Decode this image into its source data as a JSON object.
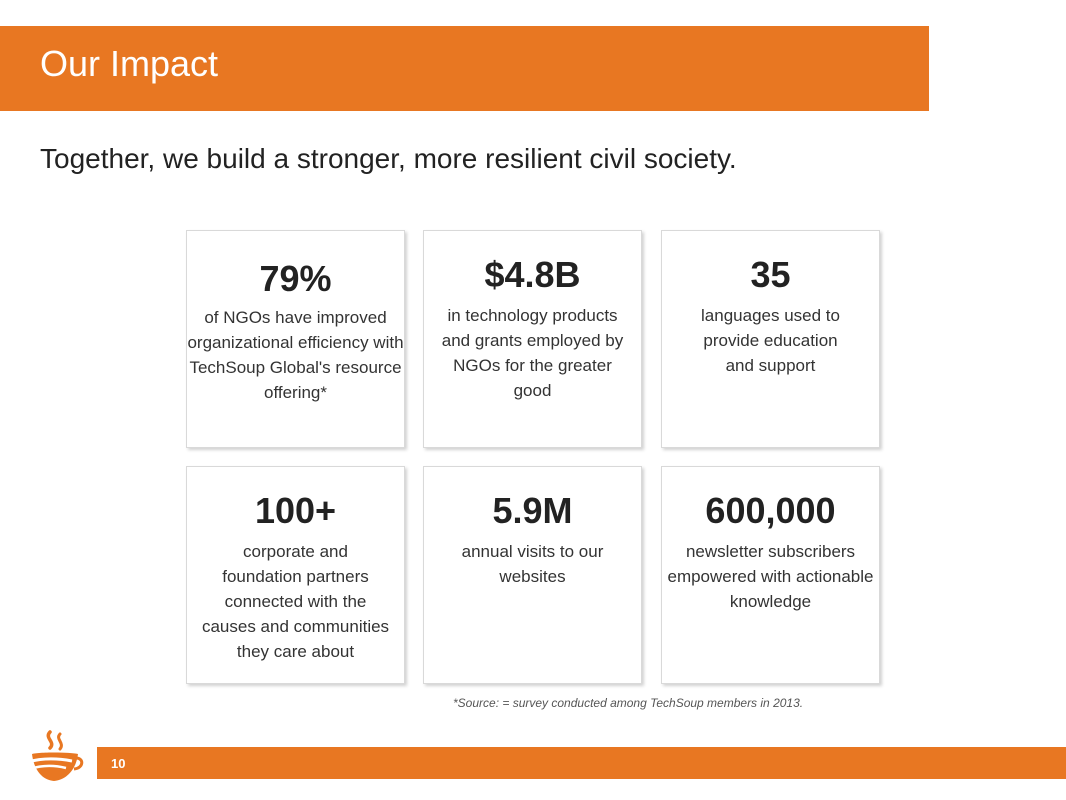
{
  "header": {
    "title": "Our Impact"
  },
  "tagline": "Together, we build a stronger, more resilient civil society.",
  "cards": [
    {
      "stat": "79%",
      "desc": "of NGOs have improved organizational efficiency with TechSoup Global's resource offering*"
    },
    {
      "stat": "$4.8B",
      "desc": "in technology products and grants employed by NGOs for the greater good"
    },
    {
      "stat": "35",
      "desc": "languages used to provide education and support"
    },
    {
      "stat": "100+",
      "desc": "corporate and foundation partners connected with the causes and communities they care about"
    },
    {
      "stat": "5.9M",
      "desc": "annual visits to our websites"
    },
    {
      "stat": "600,000",
      "desc": "newsletter subscribers empowered with actionable knowledge"
    }
  ],
  "source_note": "*Source: = survey conducted among TechSoup members in 2013.",
  "footer": {
    "page_number": "10"
  },
  "colors": {
    "accent": "#e87722",
    "text": "#333333",
    "background": "#ffffff"
  },
  "icons": {
    "logo": "teacup-logo-icon"
  }
}
